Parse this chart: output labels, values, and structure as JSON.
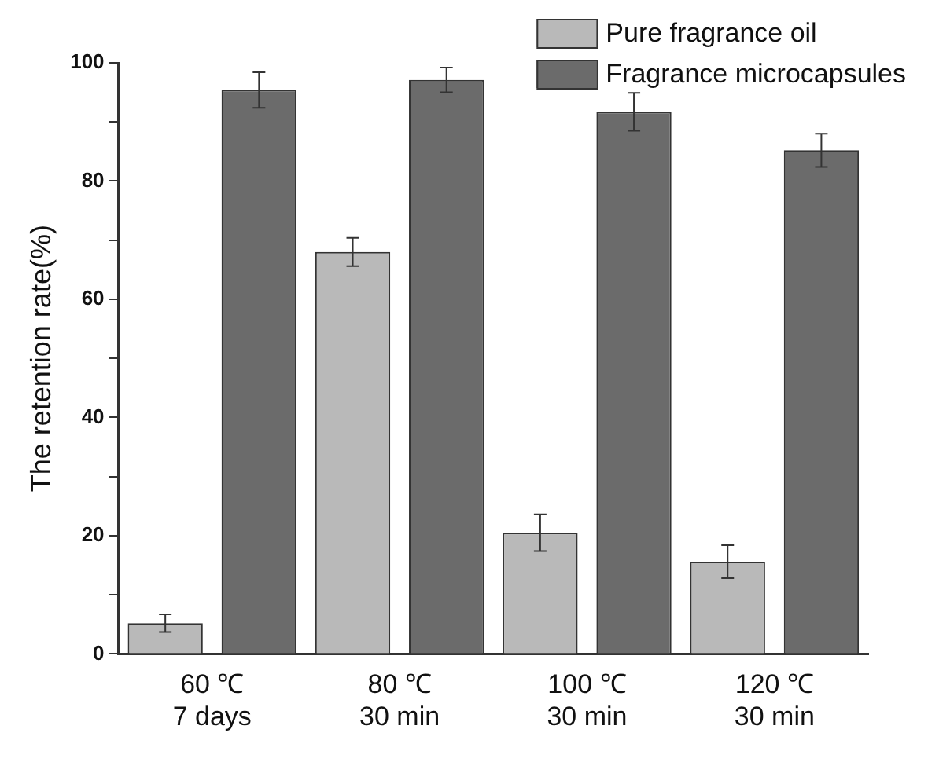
{
  "chart_data": {
    "type": "bar",
    "ylabel": "The retention rate(%)",
    "categories": [
      "60 ℃\n7 days",
      "80 ℃\n30 min",
      "100 ℃\n30 min",
      "120 ℃\n30 min"
    ],
    "series": [
      {
        "name": "Pure fragrance oil",
        "color": "#b9b9b9",
        "values": [
          5.2,
          68.0,
          20.5,
          15.6
        ],
        "errors": [
          1.5,
          2.4,
          3.1,
          2.8
        ]
      },
      {
        "name": "Fragrance microcapsules",
        "color": "#6b6b6b",
        "values": [
          95.4,
          97.1,
          91.7,
          85.2
        ],
        "errors": [
          3.0,
          2.1,
          3.2,
          2.8
        ]
      }
    ],
    "ylim": [
      0,
      100
    ],
    "yticks": [
      0,
      {
        "value": 10,
        "label": null
      },
      20,
      {
        "value": 30,
        "label": null
      },
      40,
      {
        "value": 50,
        "label": null
      },
      60,
      {
        "value": 70,
        "label": null
      },
      80,
      {
        "value": 90,
        "label": null
      },
      100
    ],
    "grid": false,
    "legend": "top right"
  }
}
